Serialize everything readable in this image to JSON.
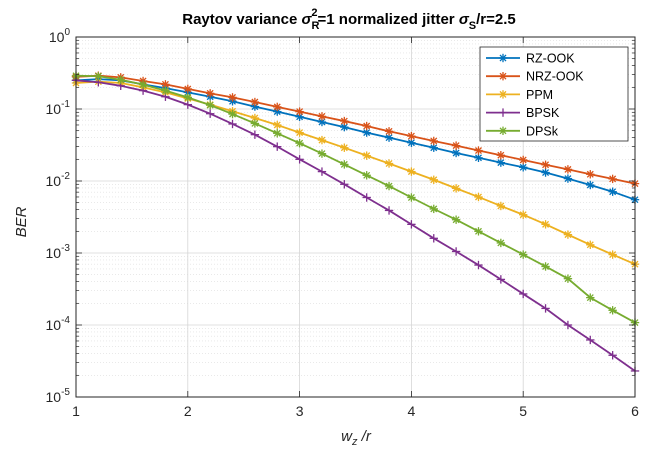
{
  "chart_data": {
    "type": "line",
    "title": {
      "prefix": "Raytov variance ",
      "sigma": "σ",
      "sub_r": "R",
      "sup_2": "2",
      "eq1": "=1   normalized jitter  ",
      "sub_s": "S",
      "eq2": "/r=2.5"
    },
    "xlabel": {
      "main": "w",
      "sub": "z",
      "rest": " /r"
    },
    "ylabel": "BER",
    "xlim": [
      1,
      6
    ],
    "ylim_log10": [
      -5,
      0
    ],
    "y_scale": "log",
    "grid": true,
    "minor_grid": true,
    "legend_position": "top-right",
    "x_ticks": [
      "1",
      "2",
      "3",
      "4",
      "5",
      "6"
    ],
    "y_ticks": [
      {
        "base": "10",
        "exp": "0"
      },
      {
        "base": "10",
        "exp": "-1"
      },
      {
        "base": "10",
        "exp": "-2"
      },
      {
        "base": "10",
        "exp": "-3"
      },
      {
        "base": "10",
        "exp": "-4"
      },
      {
        "base": "10",
        "exp": "-5"
      }
    ],
    "x": [
      1.0,
      1.2,
      1.4,
      1.6,
      1.8,
      2.0,
      2.2,
      2.4,
      2.6,
      2.8,
      3.0,
      3.2,
      3.4,
      3.6,
      3.8,
      4.0,
      4.2,
      4.4,
      4.6,
      4.8,
      5.0,
      5.2,
      5.4,
      5.6,
      5.8,
      6.0
    ],
    "series": [
      {
        "name": "RZ-OOK",
        "color": "#0072BD",
        "marker": "asterisk",
        "values": [
          0.25,
          0.26,
          0.25,
          0.22,
          0.195,
          0.17,
          0.148,
          0.128,
          0.108,
          0.092,
          0.078,
          0.066,
          0.056,
          0.047,
          0.04,
          0.034,
          0.029,
          0.0245,
          0.021,
          0.018,
          0.0155,
          0.0131,
          0.0108,
          0.0088,
          0.0071,
          0.0055
        ]
      },
      {
        "name": "NRZ-OOK",
        "color": "#D95319",
        "marker": "asterisk",
        "values": [
          0.28,
          0.29,
          0.275,
          0.245,
          0.22,
          0.19,
          0.165,
          0.145,
          0.125,
          0.107,
          0.092,
          0.079,
          0.068,
          0.058,
          0.049,
          0.042,
          0.036,
          0.031,
          0.0265,
          0.0228,
          0.0196,
          0.0168,
          0.0145,
          0.0124,
          0.0107,
          0.0092
        ]
      },
      {
        "name": "PPM",
        "color": "#EDB120",
        "marker": "asterisk",
        "values": [
          0.23,
          0.24,
          0.23,
          0.2,
          0.17,
          0.14,
          0.115,
          0.093,
          0.075,
          0.06,
          0.047,
          0.037,
          0.029,
          0.0225,
          0.0175,
          0.0135,
          0.0104,
          0.0079,
          0.006,
          0.0045,
          0.0034,
          0.0025,
          0.0018,
          0.0013,
          0.00095,
          0.0007
        ]
      },
      {
        "name": "BPSK",
        "color": "#7E2F8E",
        "marker": "plus",
        "values": [
          0.25,
          0.235,
          0.21,
          0.18,
          0.148,
          0.115,
          0.086,
          0.062,
          0.044,
          0.03,
          0.02,
          0.0135,
          0.009,
          0.0059,
          0.0039,
          0.0025,
          0.0016,
          0.00105,
          0.00068,
          0.00043,
          0.00027,
          0.00017,
          0.0001,
          6.2e-05,
          3.8e-05,
          2.3e-05
        ]
      },
      {
        "name": "DPSk",
        "color": "#77AC30",
        "marker": "asterisk",
        "values": [
          0.29,
          0.285,
          0.255,
          0.218,
          0.18,
          0.145,
          0.113,
          0.085,
          0.063,
          0.046,
          0.0335,
          0.024,
          0.017,
          0.012,
          0.0085,
          0.0059,
          0.0041,
          0.0029,
          0.002,
          0.00138,
          0.00095,
          0.00065,
          0.00044,
          0.00024,
          0.00016,
          0.000108
        ]
      }
    ]
  }
}
